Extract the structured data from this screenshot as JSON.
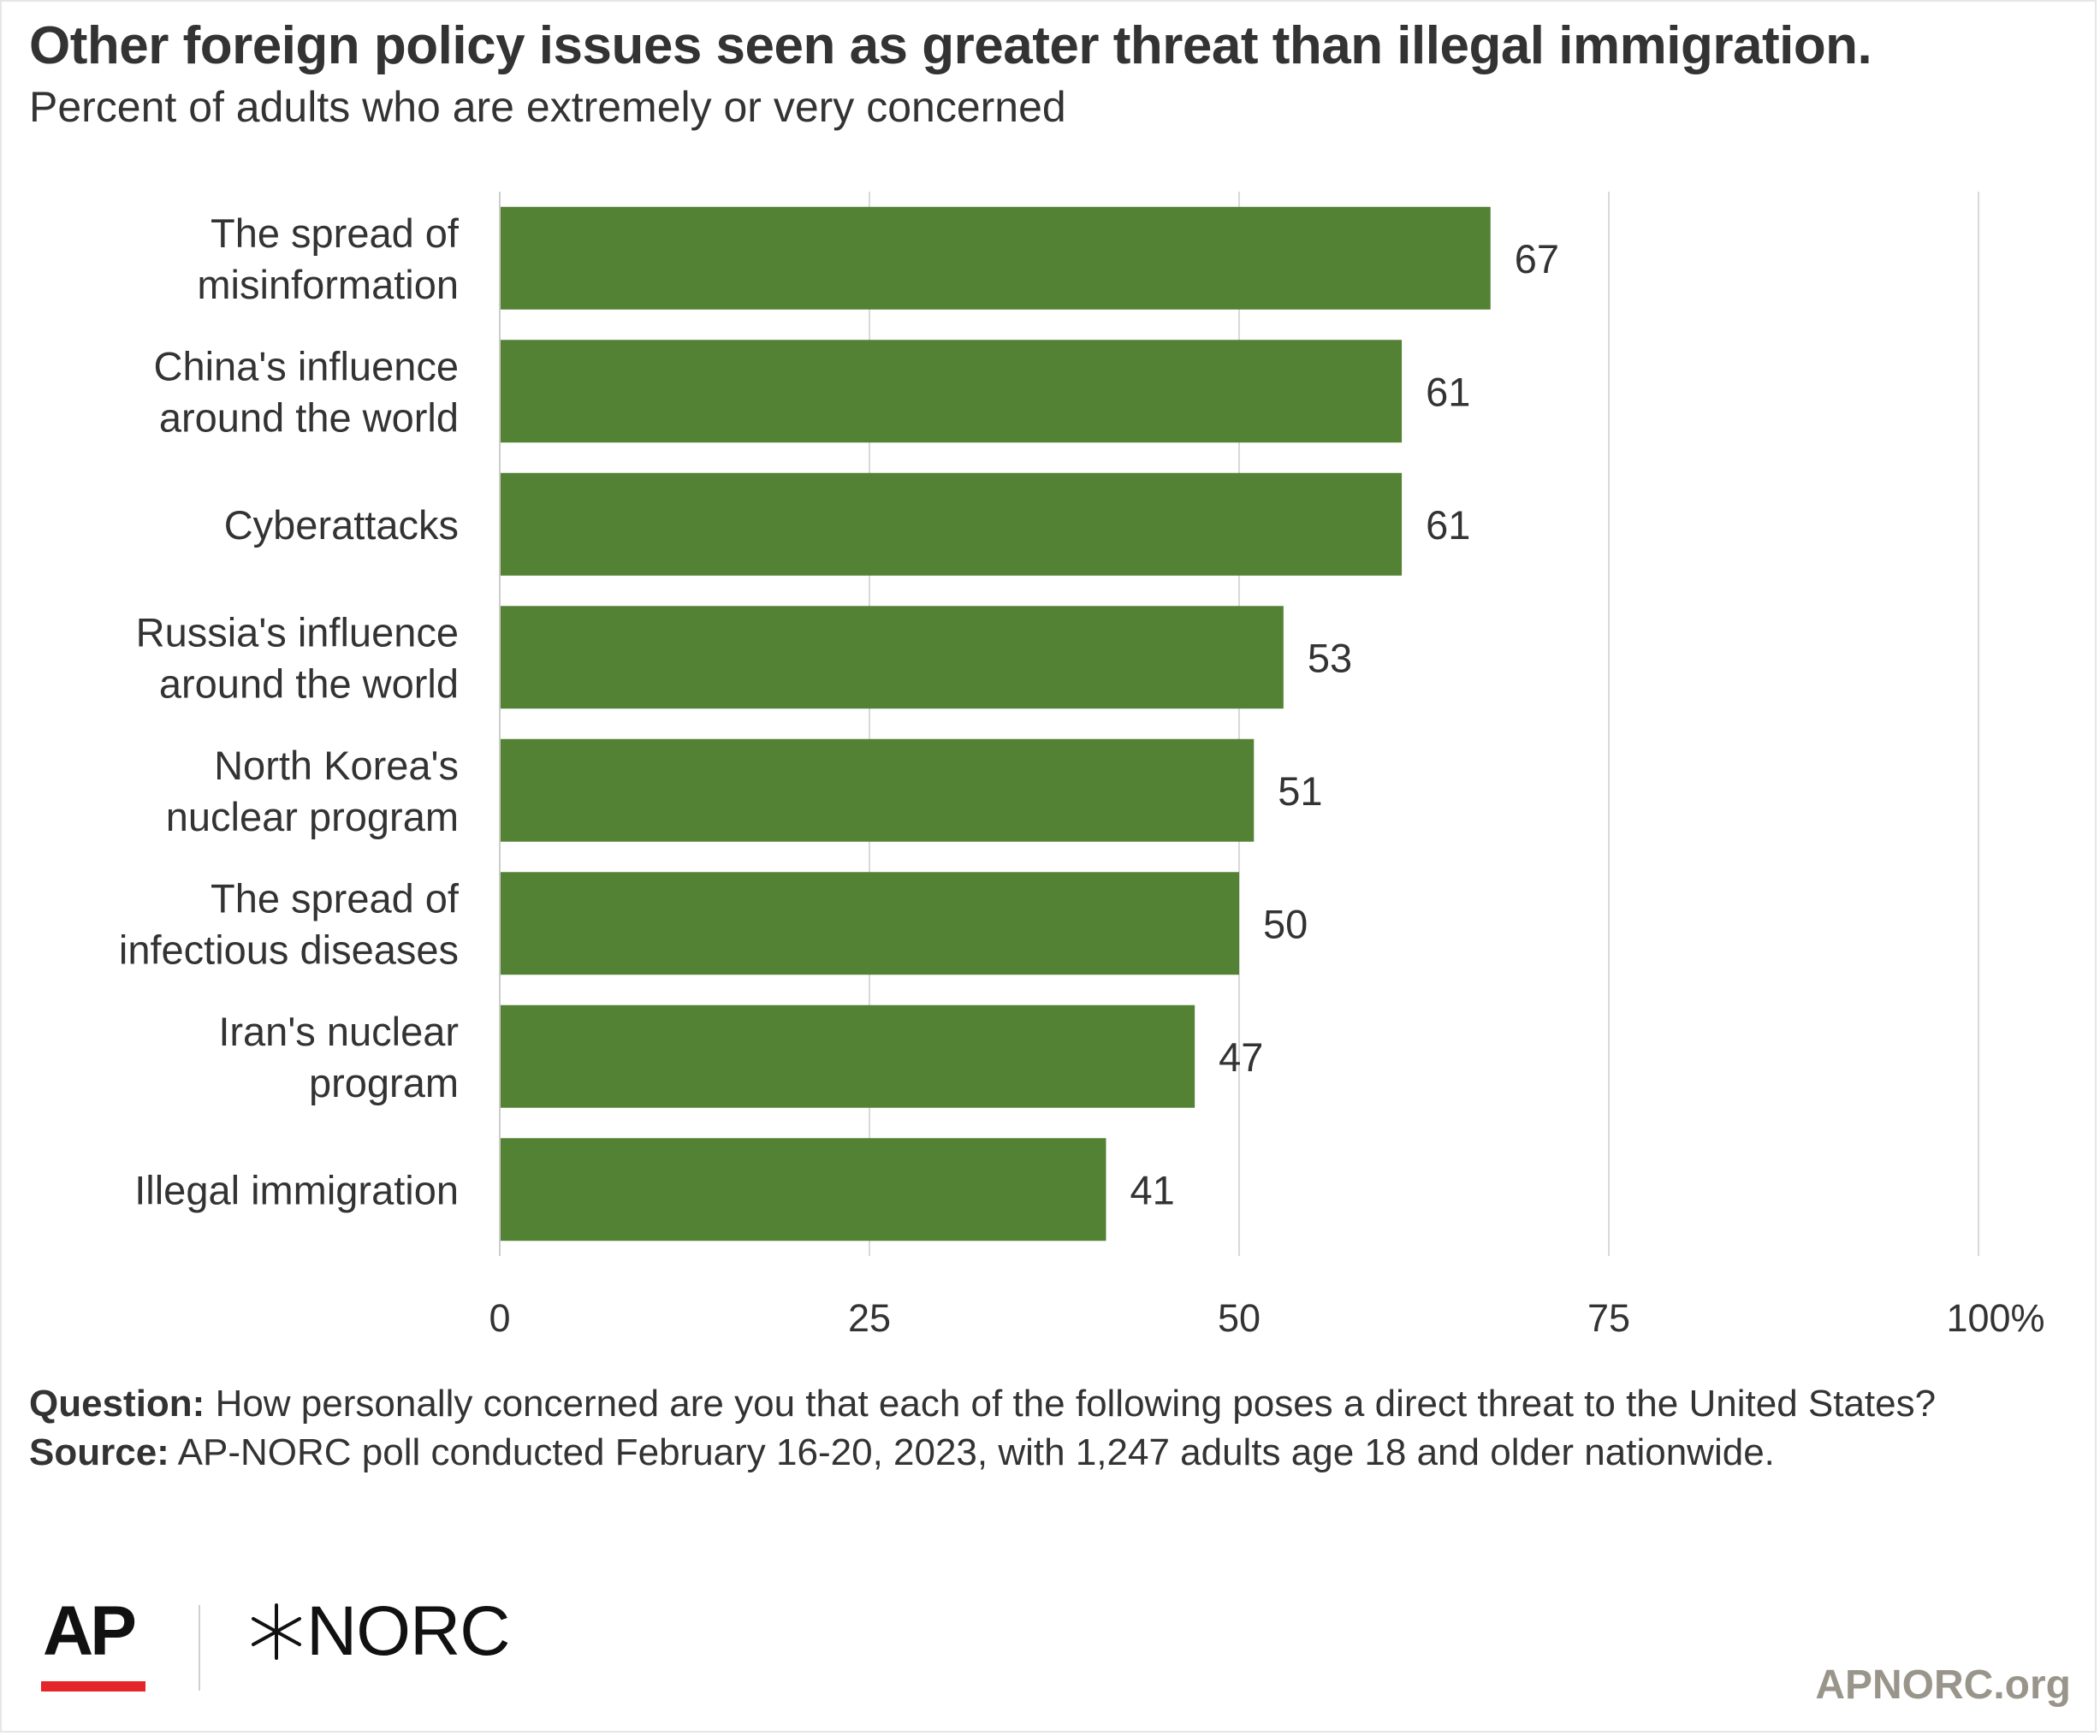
{
  "header": {
    "title": "Other foreign policy issues seen as greater threat than illegal immigration.",
    "subtitle": "Percent of adults who are extremely or very concerned"
  },
  "chart_data": {
    "type": "bar",
    "orientation": "horizontal",
    "categories": [
      [
        "The spread of",
        "misinformation"
      ],
      [
        "China's influence",
        "around the world"
      ],
      [
        "Cyberattacks"
      ],
      [
        "Russia's influence",
        "around the world"
      ],
      [
        "North Korea's",
        "nuclear program"
      ],
      [
        "The spread of",
        "infectious diseases"
      ],
      [
        "Iran's nuclear",
        "program"
      ],
      [
        "Illegal immigration"
      ]
    ],
    "values": [
      67,
      61,
      61,
      53,
      51,
      50,
      47,
      41
    ],
    "xlim": [
      0,
      100
    ],
    "ticks": [
      0,
      25,
      50,
      75,
      100
    ],
    "tick_labels": [
      "0",
      "25",
      "50",
      "75",
      "100%"
    ],
    "grid": true,
    "bar_color": "#548235",
    "gridline_color": "#d9d9d9"
  },
  "footer": {
    "question_label": "Question:",
    "question_text": "How personally concerned are you that each of the following poses a direct threat to the United States?",
    "source_label": "Source:",
    "source_text": "AP-NORC poll conducted February 16-20, 2023, with 1,247 adults age 18 and older nationwide.",
    "logo_ap": "AP",
    "logo_norc": "NORC",
    "link": "APNORC.org",
    "accent_color": "#e4262a"
  }
}
